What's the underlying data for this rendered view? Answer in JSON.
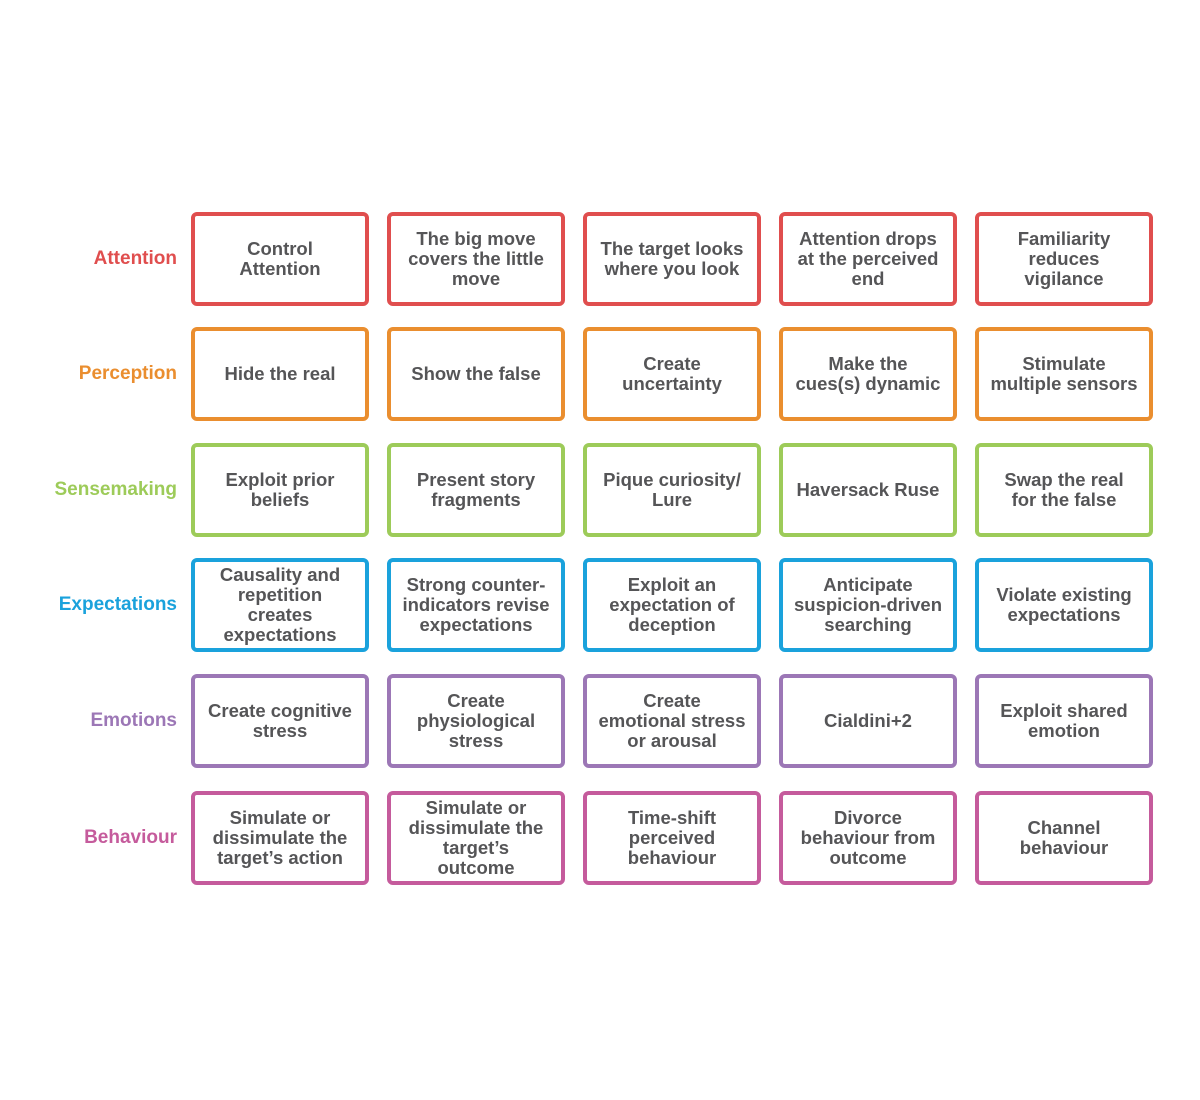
{
  "rows": [
    {
      "label": "Attention",
      "color": "#e04e4e",
      "cells": [
        "Control\nAttention",
        "The big move\ncovers the little\nmove",
        "The target looks\nwhere you look",
        "Attention drops\nat the perceived\nend",
        "Familiarity\nreduces\nvigilance"
      ]
    },
    {
      "label": "Perception",
      "color": "#ea8e2f",
      "cells": [
        "Hide the real",
        "Show the false",
        "Create\nuncertainty",
        "Make the\ncues(s) dynamic",
        "Stimulate\nmultiple sensors"
      ]
    },
    {
      "label": "Sensemaking",
      "color": "#9dcb59",
      "cells": [
        "Exploit prior\nbeliefs",
        "Present story\nfragments",
        "Pique curiosity/\nLure",
        "Haversack Ruse",
        "Swap the real\nfor the false"
      ]
    },
    {
      "label": "Expectations",
      "color": "#1aa2dc",
      "cells": [
        "Causality and\nrepetition\ncreates\nexpectations",
        "Strong counter-\nindicators revise\nexpectations",
        "Exploit an\nexpectation of\ndeception",
        "Anticipate\nsuspicion-driven\nsearching",
        "Violate existing\nexpectations"
      ]
    },
    {
      "label": "Emotions",
      "color": "#9c77b6",
      "cells": [
        "Create cognitive\nstress",
        "Create\nphysiological\nstress",
        "Create\nemotional stress\nor arousal",
        "Cialdini+2",
        "Exploit shared\nemotion"
      ]
    },
    {
      "label": "Behaviour",
      "color": "#c55b9c",
      "cells": [
        "Simulate or\ndissimulate the\ntarget’s action",
        "Simulate or\ndissimulate the\ntarget’s\noutcome",
        "Time-shift\nperceived\nbehaviour",
        "Divorce\nbehaviour from\noutcome",
        "Channel\nbehaviour"
      ]
    }
  ]
}
